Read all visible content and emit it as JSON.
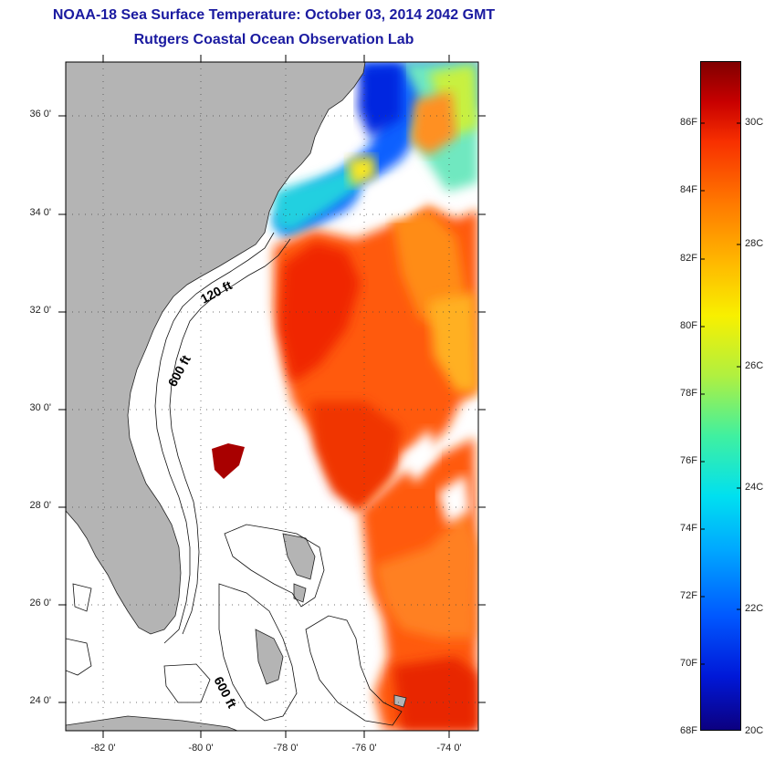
{
  "title_line1": "NOAA-18 Sea Surface Temperature:  October 03, 2014 2042 GMT",
  "title_line2": "Rutgers Coastal Ocean Observation Lab",
  "lat_labels": [
    "36 0'",
    "34 0'",
    "32 0'",
    "30 0'",
    "28 0'",
    "26 0'",
    "24 0'"
  ],
  "lon_labels": [
    "-82 0'",
    "-80 0'",
    "-78 0'",
    "-76 0'",
    "-74 0'"
  ],
  "contour_labels": {
    "shelf_120": "120 ft",
    "shelf_600": "600 ft",
    "bahamas_600": "600 ft"
  },
  "colorbar": {
    "fahrenheit": [
      "86F",
      "84F",
      "82F",
      "80F",
      "78F",
      "76F",
      "74F",
      "72F",
      "70F",
      "68F"
    ],
    "celsius": [
      "30C",
      "28C",
      "26C",
      "24C",
      "22C",
      "20C"
    ]
  },
  "colors": {
    "land": "#b4b4b4",
    "title": "#1a1aa0",
    "warm": "#ff4a10",
    "hot": "#e02000",
    "cool": "#1040ff"
  }
}
